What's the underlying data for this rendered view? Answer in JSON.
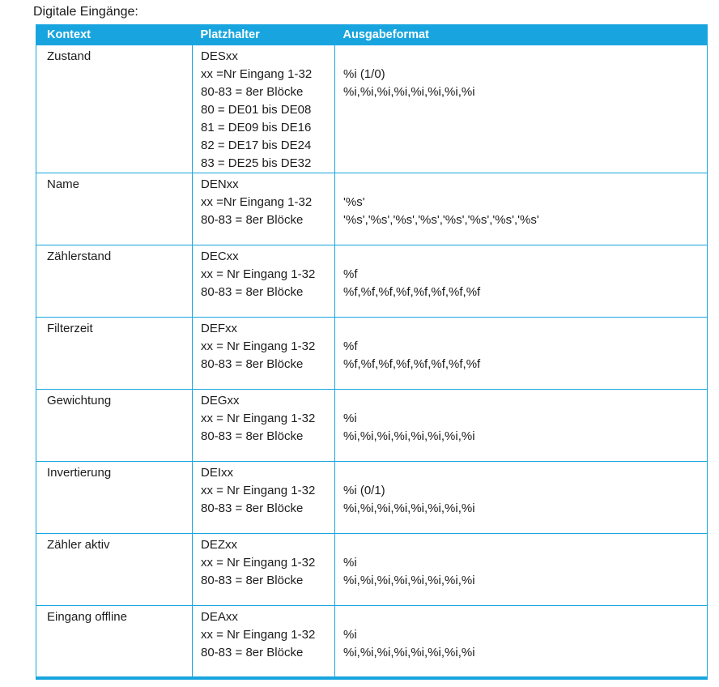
{
  "title": "Digitale Eingänge:",
  "colors": {
    "accent": "#18a5df",
    "header_text": "#ffffff",
    "body_text": "#1c1c1c"
  },
  "table": {
    "headers": [
      "Kontext",
      "Platzhalter",
      "Ausgabeformat"
    ],
    "rows": [
      {
        "kontext": "Zustand",
        "platzhalter": [
          "DESxx",
          "xx =Nr Eingang 1-32",
          "80-83 = 8er Blöcke",
          "80 = DE01 bis DE08",
          "81 = DE09 bis DE16",
          "82 = DE17 bis DE24",
          "83 = DE25 bis DE32"
        ],
        "ausgabeformat": [
          "%i (1/0)",
          "%i,%i,%i,%i,%i,%i,%i,%i"
        ]
      },
      {
        "kontext": "Name",
        "platzhalter": [
          "DENxx",
          "xx =Nr Eingang 1-32",
          "80-83 = 8er Blöcke"
        ],
        "ausgabeformat": [
          "'%s'",
          "'%s','%s','%s','%s','%s','%s','%s','%s'"
        ]
      },
      {
        "kontext": "Zählerstand",
        "platzhalter": [
          "DECxx",
          "xx = Nr Eingang 1-32",
          "80-83 = 8er Blöcke"
        ],
        "ausgabeformat": [
          "%f",
          "%f,%f,%f,%f,%f,%f,%f,%f"
        ]
      },
      {
        "kontext": "Filterzeit",
        "platzhalter": [
          "DEFxx",
          "xx = Nr Eingang 1-32",
          "80-83 = 8er Blöcke"
        ],
        "ausgabeformat": [
          "%f",
          "%f,%f,%f,%f,%f,%f,%f,%f"
        ]
      },
      {
        "kontext": "Gewichtung",
        "platzhalter": [
          "DEGxx",
          "xx = Nr Eingang 1-32",
          "80-83 = 8er Blöcke"
        ],
        "ausgabeformat": [
          "%i",
          "%i,%i,%i,%i,%i,%i,%i,%i"
        ]
      },
      {
        "kontext": "Invertierung",
        "platzhalter": [
          "DEIxx",
          "xx = Nr Eingang 1-32",
          "80-83 = 8er Blöcke"
        ],
        "ausgabeformat": [
          "%i (0/1)",
          "%i,%i,%i,%i,%i,%i,%i,%i"
        ]
      },
      {
        "kontext": "Zähler aktiv",
        "platzhalter": [
          "DEZxx",
          "xx = Nr Eingang 1-32",
          "80-83 = 8er Blöcke"
        ],
        "ausgabeformat": [
          "%i",
          "%i,%i,%i,%i,%i,%i,%i,%i"
        ]
      },
      {
        "kontext": "Eingang offline",
        "platzhalter": [
          "DEAxx",
          "xx = Nr Eingang 1-32",
          "80-83 = 8er Blöcke"
        ],
        "ausgabeformat": [
          "%i",
          "%i,%i,%i,%i,%i,%i,%i,%i"
        ]
      }
    ]
  }
}
